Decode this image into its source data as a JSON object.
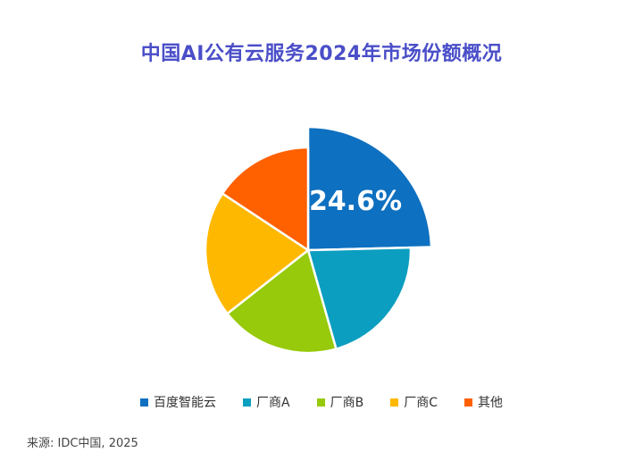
{
  "title": "中国AI公有云服务2024年市场份额概况",
  "source": "来源: IDC中国, 2025",
  "chart_data": {
    "type": "pie",
    "title": "中国AI公有云服务2024年市场份额概况",
    "legend_position": "bottom",
    "exploded_slice": "百度智能云",
    "slices": [
      {
        "label": "百度智能云",
        "value": 24.6,
        "color": "#0e70c0",
        "data_label": "24.6%"
      },
      {
        "label": "厂商A",
        "value": 21.0,
        "color": "#0c9ec0"
      },
      {
        "label": "厂商B",
        "value": 18.8,
        "color": "#96ca0a"
      },
      {
        "label": "厂商C",
        "value": 19.9,
        "color": "#ffb800"
      },
      {
        "label": "其他",
        "value": 15.7,
        "color": "#ff6000"
      }
    ]
  }
}
